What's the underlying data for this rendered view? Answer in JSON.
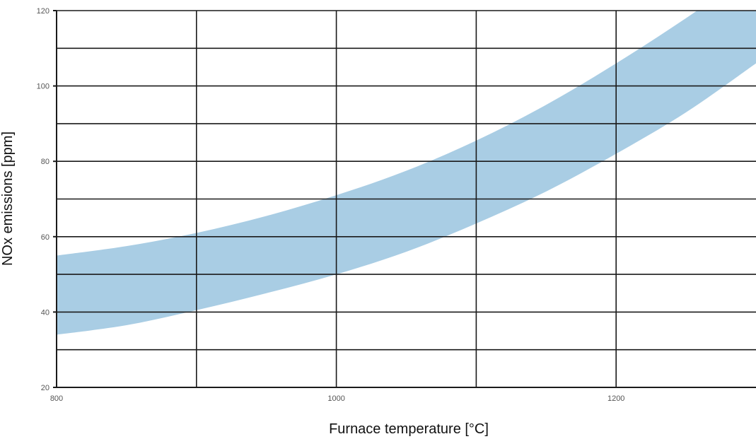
{
  "chart_data": {
    "type": "area",
    "title": "",
    "xlabel": "Furnace temperature [°C]",
    "ylabel": "NOx emissions [ppm]",
    "xlim": [
      800,
      1300
    ],
    "ylim": [
      20,
      120
    ],
    "x_ticks": [
      800,
      1000,
      1200
    ],
    "x_tick_labels": [
      "800",
      "1000",
      "1200"
    ],
    "x_grid": [
      800,
      900,
      1000,
      1100,
      1200
    ],
    "y_ticks": [
      20,
      40,
      60,
      80,
      100,
      120
    ],
    "y_tick_labels": [
      "20",
      "40",
      "60",
      "80",
      "100",
      "120"
    ],
    "y_grid": [
      30,
      40,
      50,
      60,
      70,
      80,
      90,
      100,
      110,
      120
    ],
    "grid": true,
    "band_color": "#a9cde4",
    "series": [
      {
        "name": "",
        "x": [
          800,
          850,
          900,
          950,
          1000,
          1050,
          1100,
          1150,
          1200,
          1250,
          1300
        ],
        "upper": [
          55,
          57.5,
          61,
          65.5,
          71,
          77.5,
          85.5,
          95,
          106,
          118,
          131
        ],
        "lower": [
          34,
          36.5,
          40.5,
          45,
          50,
          56,
          63.5,
          72,
          82,
          93,
          106
        ]
      }
    ]
  }
}
